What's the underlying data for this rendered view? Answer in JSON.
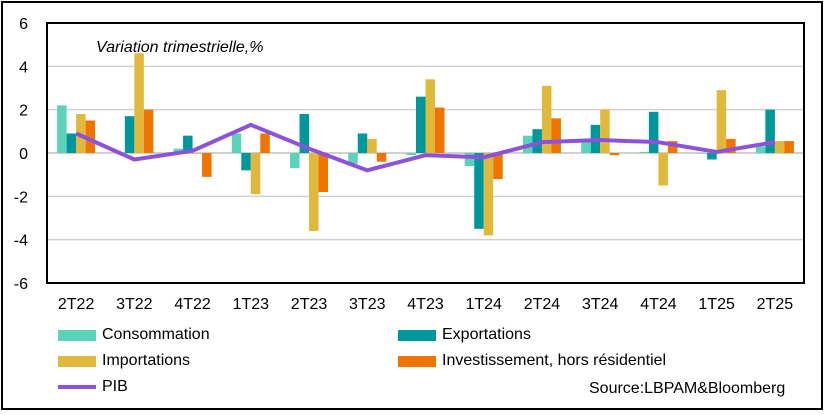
{
  "chart_data": {
    "type": "bar",
    "title": "Variation trimestrielle,%",
    "categories": [
      "2T22",
      "3T22",
      "4T22",
      "1T23",
      "2T23",
      "3T23",
      "4T23",
      "1T24",
      "2T24",
      "3T24",
      "4T24",
      "1T25",
      "2T25"
    ],
    "ylim": [
      -6,
      6
    ],
    "yticks": [
      6,
      4,
      2,
      0,
      -2,
      -4,
      -6
    ],
    "grid": true,
    "legend_position": "bottom",
    "series": [
      {
        "name": "Consommation",
        "type": "bar",
        "color": "#5ad3b9",
        "values": [
          2.2,
          0.0,
          0.2,
          0.9,
          -0.7,
          -0.5,
          -0.1,
          -0.6,
          0.8,
          0.6,
          0.05,
          0.0,
          0.3
        ]
      },
      {
        "name": "Exportations",
        "type": "bar",
        "color": "#00979c",
        "values": [
          0.9,
          1.7,
          0.8,
          -0.8,
          1.8,
          0.9,
          2.6,
          -3.5,
          1.1,
          1.3,
          1.9,
          -0.3,
          2.0
        ]
      },
      {
        "name": "Importations",
        "type": "bar",
        "color": "#e0b93c",
        "values": [
          1.8,
          4.6,
          0.0,
          -1.9,
          -3.6,
          0.65,
          3.4,
          -3.8,
          3.1,
          2.0,
          -1.5,
          2.9,
          0.55
        ]
      },
      {
        "name": "Investissement, hors résidentiel",
        "type": "bar",
        "color": "#f07400",
        "values": [
          1.5,
          2.0,
          -1.1,
          0.9,
          -1.8,
          -0.4,
          2.1,
          -1.2,
          1.6,
          -0.1,
          0.55,
          0.65,
          0.55
        ]
      },
      {
        "name": "PIB",
        "type": "line",
        "color": "#8c52dc",
        "values": [
          0.9,
          -0.3,
          0.1,
          1.3,
          0.2,
          -0.8,
          -0.1,
          -0.2,
          0.5,
          0.6,
          0.5,
          0.05,
          0.5
        ]
      }
    ],
    "source": "Source:LBPAM&Bloomberg"
  }
}
